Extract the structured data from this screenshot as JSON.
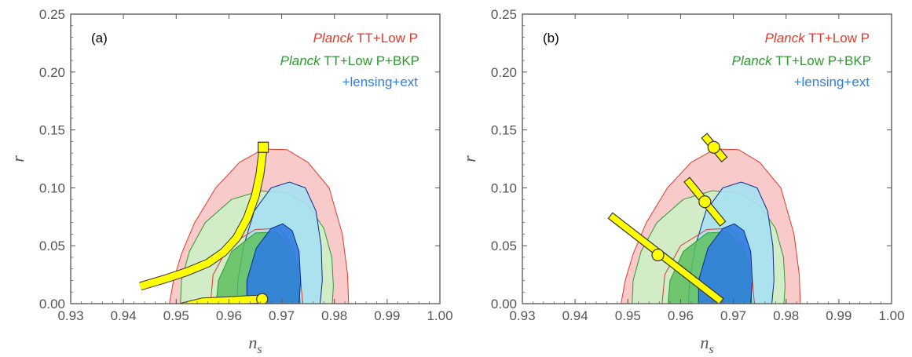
{
  "colors": {
    "red_fill": "#f8c4c4",
    "red_line": "#e03a2a",
    "green_fill": "#cdf0c8",
    "green_line": "#2e9a2e",
    "blue_outer": "#a6e1f2",
    "blue_inner": "#2f7ddf",
    "blue_line": "#0a2a8c",
    "yellow": "#ffff00",
    "yellow_stroke": "#666600",
    "axis": "#555555"
  },
  "legend": {
    "red": {
      "italic": "Planck",
      "rest": " TT+Low P"
    },
    "green": {
      "italic": "Planck",
      "rest": " TT+Low P+BKP"
    },
    "blue": "+lensing+ext"
  },
  "chart_data": [
    {
      "type": "scatter",
      "panel": "(a)",
      "xlabel": "n",
      "xlabel_sub": "s",
      "ylabel": "r",
      "xlim": [
        0.93,
        1.0
      ],
      "ylim": [
        0.0,
        0.25
      ],
      "xticks": [
        "0.93",
        "0.94",
        "0.95",
        "0.96",
        "0.97",
        "0.98",
        "0.99",
        "1.00"
      ],
      "yticks": [
        "0.00",
        "0.05",
        "0.10",
        "0.15",
        "0.20",
        "0.25"
      ],
      "series": [
        {
          "name": "Planck TT+Low P",
          "kind": "contour"
        },
        {
          "name": "Planck TT+Low P+BKP",
          "kind": "contour"
        },
        {
          "name": "+lensing+ext",
          "kind": "contour"
        }
      ],
      "model_curves": [
        {
          "x": [
            0.9432,
            0.948,
            0.952,
            0.956,
            0.959,
            0.9615,
            0.9635,
            0.965,
            0.9659,
            0.9665
          ],
          "y": [
            0.015,
            0.0215,
            0.0275,
            0.035,
            0.0445,
            0.057,
            0.074,
            0.093,
            0.112,
            0.135
          ],
          "end_marker": "square"
        },
        {
          "x": [
            0.951,
            0.955,
            0.96,
            0.964,
            0.9663
          ],
          "y": [
            -0.003,
            0.0015,
            0.0025,
            0.0035,
            0.004
          ],
          "end_marker": "circle"
        }
      ]
    },
    {
      "type": "scatter",
      "panel": "(b)",
      "xlabel": "n",
      "xlabel_sub": "s",
      "ylabel": "r",
      "xlim": [
        0.93,
        1.0
      ],
      "ylim": [
        0.0,
        0.25
      ],
      "xticks": [
        "0.93",
        "0.94",
        "0.95",
        "0.96",
        "0.97",
        "0.98",
        "0.99",
        "1.00"
      ],
      "yticks": [
        "0.00",
        "0.05",
        "0.10",
        "0.15",
        "0.20",
        "0.25"
      ],
      "series": [
        {
          "name": "Planck TT+Low P",
          "kind": "contour"
        },
        {
          "name": "Planck TT+Low P+BKP",
          "kind": "contour"
        },
        {
          "name": "+lensing+ext",
          "kind": "contour"
        }
      ],
      "model_points": [
        {
          "x": 0.9663,
          "y": 0.135,
          "bar": [
            [
              0.9645,
              0.145
            ],
            [
              0.9683,
              0.1245
            ]
          ]
        },
        {
          "x": 0.9646,
          "y": 0.088,
          "bar": [
            [
              0.9612,
              0.107
            ],
            [
              0.968,
              0.069
            ]
          ]
        },
        {
          "x": 0.9557,
          "y": 0.042,
          "bar": [
            [
              0.9467,
              0.076
            ],
            [
              0.9677,
              0.002
            ]
          ]
        }
      ]
    }
  ]
}
